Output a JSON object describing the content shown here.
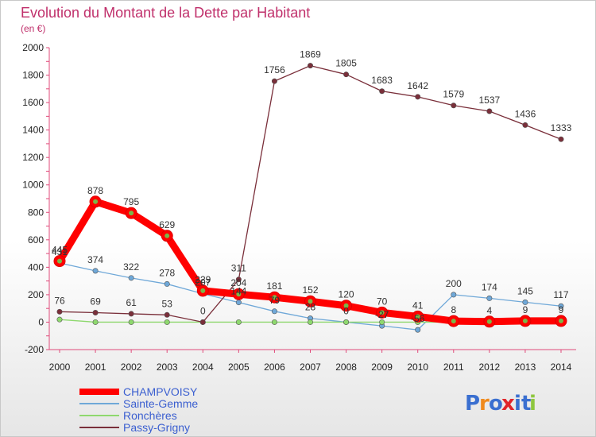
{
  "chart_data": {
    "type": "line",
    "title": "Evolution du Montant de la Dette par Habitant",
    "subtitle": "(en €)",
    "x": [
      "2000",
      "2001",
      "2002",
      "2003",
      "2004",
      "2005",
      "2006",
      "2007",
      "2008",
      "2009",
      "2010",
      "2011",
      "2012",
      "2013",
      "2014"
    ],
    "ylim": [
      -200,
      2000
    ],
    "yticks": [
      -200,
      0,
      200,
      400,
      600,
      800,
      1000,
      1200,
      1400,
      1600,
      1800,
      2000
    ],
    "grid": false,
    "legend_position": "bottom-left",
    "series": [
      {
        "name": "Sainte-Gemme",
        "color": "#6fa8d8",
        "values": [
          431,
          374,
          322,
          278,
          207,
          144,
          79,
          28,
          0,
          -27,
          -56,
          200,
          174,
          145,
          117
        ],
        "labels": [
          "431",
          "374",
          "322",
          "278",
          "207",
          "144",
          "79",
          "28",
          "0",
          "-27",
          "-56",
          "200",
          "174",
          "145",
          "117"
        ]
      },
      {
        "name": "Ronchères",
        "color": "#8ed86e",
        "values": [
          19,
          0,
          0,
          0,
          0,
          0,
          0,
          0,
          0,
          0,
          0,
          0,
          0,
          0,
          0
        ],
        "labels": [
          "",
          "",
          "",
          "",
          "",
          "",
          "",
          "",
          "",
          "",
          "",
          "",
          "",
          "",
          ""
        ]
      },
      {
        "name": "Passy-Grigny",
        "color": "#7a2f3a",
        "values": [
          76,
          69,
          61,
          53,
          0,
          311,
          1756,
          1869,
          1805,
          1683,
          1642,
          1579,
          1537,
          1436,
          1333
        ],
        "labels": [
          "76",
          "69",
          "61",
          "53",
          "0",
          "311",
          "1756",
          "1869",
          "1805",
          "1683",
          "1642",
          "1579",
          "1537",
          "1436",
          "1333"
        ]
      },
      {
        "name": "CHAMPVOISY",
        "color": "#ff0000",
        "values": [
          445,
          878,
          795,
          629,
          229,
          204,
          181,
          152,
          120,
          70,
          41,
          8,
          4,
          9,
          9
        ],
        "labels": [
          "445",
          "878",
          "795",
          "629",
          "229",
          "204",
          "181",
          "152",
          "120",
          "70",
          "41",
          "8",
          "4",
          "9",
          "9"
        ]
      }
    ],
    "legend": [
      "CHAMPVOISY",
      "Sainte-Gemme",
      "Ronchères",
      "Passy-Grigny"
    ]
  },
  "logo": {
    "text": "Proxiti",
    "letters": [
      "P",
      "r",
      "o",
      "x",
      "i",
      "t",
      "i"
    ],
    "colors": [
      "#3a6fd0",
      "#f08a1c",
      "#3a6fd0",
      "#e0242a",
      "#3a6fd0",
      "#3a6fd0",
      "#8ec63f"
    ]
  }
}
